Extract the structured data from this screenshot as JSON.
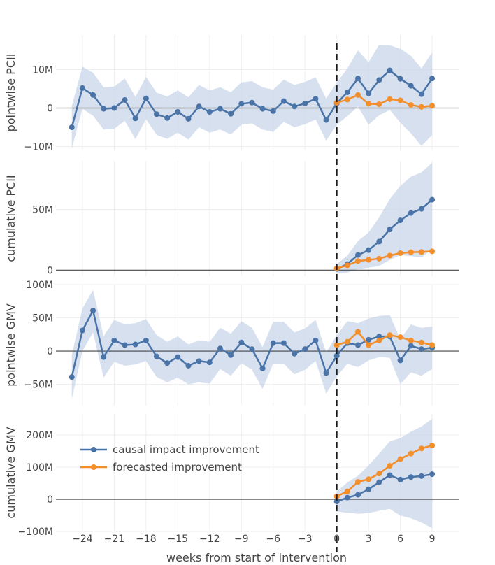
{
  "chart_data": {
    "type": "line",
    "xlabel": "weeks from start of intervention",
    "x_ticks": [
      -24,
      -21,
      -18,
      -15,
      -12,
      -9,
      -6,
      -3,
      0,
      3,
      6,
      9
    ],
    "x_tick_labels": [
      "−24",
      "−21",
      "−18",
      "−15",
      "−12",
      "−9",
      "−6",
      "−3",
      "0",
      "3",
      "6",
      "9"
    ],
    "xlim": [
      -26.5,
      11.5
    ],
    "intervention_week": 0,
    "legend": [
      {
        "name": "causal impact improvement",
        "color": "#4a74a8"
      },
      {
        "name": "forecasted improvement",
        "color": "#f28e2b"
      }
    ],
    "band_color": "#c8d5e9",
    "panels": [
      {
        "ylabel": "pointwise PCII",
        "ylim": [
          -11000000,
          19000000
        ],
        "yticks": [
          -10000000,
          0,
          10000000
        ],
        "ytick_labels": [
          "−10M",
          "0",
          "10M"
        ],
        "causal": {
          "x": [
            -25,
            -24,
            -23,
            -22,
            -21,
            -20,
            -19,
            -18,
            -17,
            -16,
            -15,
            -14,
            -13,
            -12,
            -11,
            -10,
            -9,
            -8,
            -7,
            -6,
            -5,
            -4,
            -3,
            -2,
            -1,
            0,
            1,
            2,
            3,
            4,
            5,
            6,
            7,
            8,
            9
          ],
          "y": [
            -5000000,
            5200000,
            3400000,
            -200000,
            0,
            2100000,
            -2700000,
            2500000,
            -1600000,
            -2600000,
            -1000000,
            -2800000,
            400000,
            -1000000,
            -200000,
            -1500000,
            1100000,
            1400000,
            -200000,
            -800000,
            1800000,
            400000,
            1200000,
            2400000,
            -3100000,
            1200000,
            4100000,
            7700000,
            3800000,
            7300000,
            9800000,
            7600000,
            5800000,
            3600000,
            7700000
          ],
          "lower": [
            -10500000,
            -200000,
            -2000000,
            -5600000,
            -5400000,
            -3300000,
            -8100000,
            -2900000,
            -7000000,
            -8000000,
            -6400000,
            -8200000,
            -5000000,
            -6400000,
            -5600000,
            -6900000,
            -4300000,
            -4000000,
            -5600000,
            -6200000,
            -3600000,
            -5000000,
            -4200000,
            -3000000,
            -8500000,
            -4300000,
            -2100000,
            400000,
            -4300000,
            -1900000,
            -500000,
            -3800000,
            -6600000,
            -9900000,
            -7000000
          ],
          "upper": [
            500000,
            10800000,
            9200000,
            5400000,
            5600000,
            7700000,
            2900000,
            8100000,
            4000000,
            3000000,
            4600000,
            2800000,
            6000000,
            4600000,
            5400000,
            4100000,
            6700000,
            7000000,
            5400000,
            4800000,
            7400000,
            6000000,
            6800000,
            8000000,
            2500000,
            6700000,
            10300000,
            15000000,
            11900000,
            16500000,
            16300000,
            15400000,
            13600000,
            10300000,
            14500000
          ]
        },
        "forecast": {
          "x": [
            0,
            1,
            2,
            3,
            4,
            5,
            6,
            7,
            8,
            9
          ],
          "y": [
            1400000,
            2200000,
            3400000,
            1100000,
            1000000,
            2300000,
            2000000,
            800000,
            300000,
            600000
          ]
        }
      },
      {
        "ylabel": "cumulative PCII",
        "ylim": [
          -5000000,
          90000000
        ],
        "yticks": [
          0,
          50000000
        ],
        "ytick_labels": [
          "0",
          "50M"
        ],
        "causal": {
          "x": [
            0,
            1,
            2,
            3,
            4,
            5,
            6,
            7,
            8,
            9
          ],
          "y": [
            1000000,
            5000000,
            12500000,
            16500000,
            23500000,
            33500000,
            41000000,
            47000000,
            50500000,
            58000000
          ],
          "lower": [
            -3000000,
            -2000000,
            1000000,
            2000000,
            3500000,
            8500000,
            12500000,
            11500000,
            10500000,
            17000000
          ],
          "upper": [
            5000000,
            12000000,
            24000000,
            31000000,
            43500000,
            58500000,
            69500000,
            77000000,
            80500000,
            88500000
          ]
        },
        "forecast": {
          "x": [
            0,
            1,
            2,
            3,
            4,
            5,
            6,
            7,
            8,
            9
          ],
          "y": [
            1500000,
            4000000,
            7500000,
            8500000,
            9500000,
            12000000,
            14000000,
            14800000,
            15000000,
            15500000
          ]
        }
      },
      {
        "ylabel": "pointwise GMV",
        "ylim": [
          -82000000,
          100000000
        ],
        "yticks": [
          -50000000,
          0,
          50000000,
          100000000
        ],
        "ytick_labels": [
          "−50M",
          "0",
          "50M",
          "100M"
        ],
        "causal": {
          "x": [
            -25,
            -24,
            -23,
            -22,
            -21,
            -20,
            -19,
            -18,
            -17,
            -16,
            -15,
            -14,
            -13,
            -12,
            -11,
            -10,
            -9,
            -8,
            -7,
            -6,
            -5,
            -4,
            -3,
            -2,
            -1,
            0,
            1,
            2,
            3,
            4,
            5,
            6,
            7,
            8,
            9
          ],
          "y": [
            -39000000,
            31000000,
            61000000,
            -9000000,
            16000000,
            9000000,
            10000000,
            16000000,
            -8000000,
            -18000000,
            -9000000,
            -22000000,
            -15000000,
            -17000000,
            4000000,
            -6000000,
            13000000,
            3000000,
            -26000000,
            12000000,
            12000000,
            -4000000,
            3000000,
            16000000,
            -33000000,
            -7000000,
            12000000,
            9000000,
            17000000,
            22000000,
            22000000,
            -14000000,
            8000000,
            3000000,
            5000000
          ],
          "lower": [
            -72000000,
            0,
            28000000,
            -40000000,
            -16000000,
            -22000000,
            -20000000,
            -15000000,
            -39000000,
            -47000000,
            -40000000,
            -50000000,
            -47000000,
            -49000000,
            -27000000,
            -37000000,
            -18000000,
            -28000000,
            -57000000,
            -19000000,
            -19000000,
            -35000000,
            -28000000,
            -15000000,
            -64000000,
            -38000000,
            -19000000,
            -24000000,
            -14000000,
            -9000000,
            -10000000,
            -50000000,
            -32000000,
            -37000000,
            -27000000
          ],
          "upper": [
            -6000000,
            64000000,
            92000000,
            22000000,
            47000000,
            40000000,
            42000000,
            48000000,
            24000000,
            14000000,
            22000000,
            10000000,
            16000000,
            14000000,
            35000000,
            26000000,
            45000000,
            35000000,
            6000000,
            44000000,
            44000000,
            28000000,
            34000000,
            47000000,
            -2000000,
            24000000,
            45000000,
            42000000,
            49000000,
            53000000,
            54000000,
            18000000,
            40000000,
            35000000,
            37000000
          ]
        },
        "forecast": {
          "x": [
            0,
            1,
            2,
            3,
            4,
            5,
            6,
            7,
            8,
            9
          ],
          "y": [
            9000000,
            14000000,
            29000000,
            9000000,
            16000000,
            24000000,
            21000000,
            16000000,
            13000000,
            9000000
          ]
        }
      },
      {
        "ylabel": "cumulative GMV",
        "ylim": [
          -100000000,
          265000000
        ],
        "yticks": [
          -100000000,
          0,
          100000000,
          200000000
        ],
        "ytick_labels": [
          "−100M",
          "0",
          "100M",
          "200M"
        ],
        "causal": {
          "x": [
            0,
            1,
            2,
            3,
            4,
            5,
            6,
            7,
            8,
            9
          ],
          "y": [
            -7000000,
            5000000,
            14000000,
            31000000,
            53000000,
            75000000,
            61000000,
            69000000,
            72000000,
            78000000
          ],
          "lower": [
            -38000000,
            -42000000,
            -45000000,
            -43000000,
            -36000000,
            -30000000,
            -51000000,
            -59000000,
            -72000000,
            -90000000
          ],
          "upper": [
            24000000,
            52000000,
            73000000,
            105000000,
            142000000,
            180000000,
            190000000,
            210000000,
            226000000,
            250000000
          ]
        },
        "forecast": {
          "x": [
            0,
            1,
            2,
            3,
            4,
            5,
            6,
            7,
            8,
            9
          ],
          "y": [
            9000000,
            24000000,
            54000000,
            62000000,
            80000000,
            104000000,
            125000000,
            142000000,
            158000000,
            167000000
          ]
        }
      }
    ]
  }
}
